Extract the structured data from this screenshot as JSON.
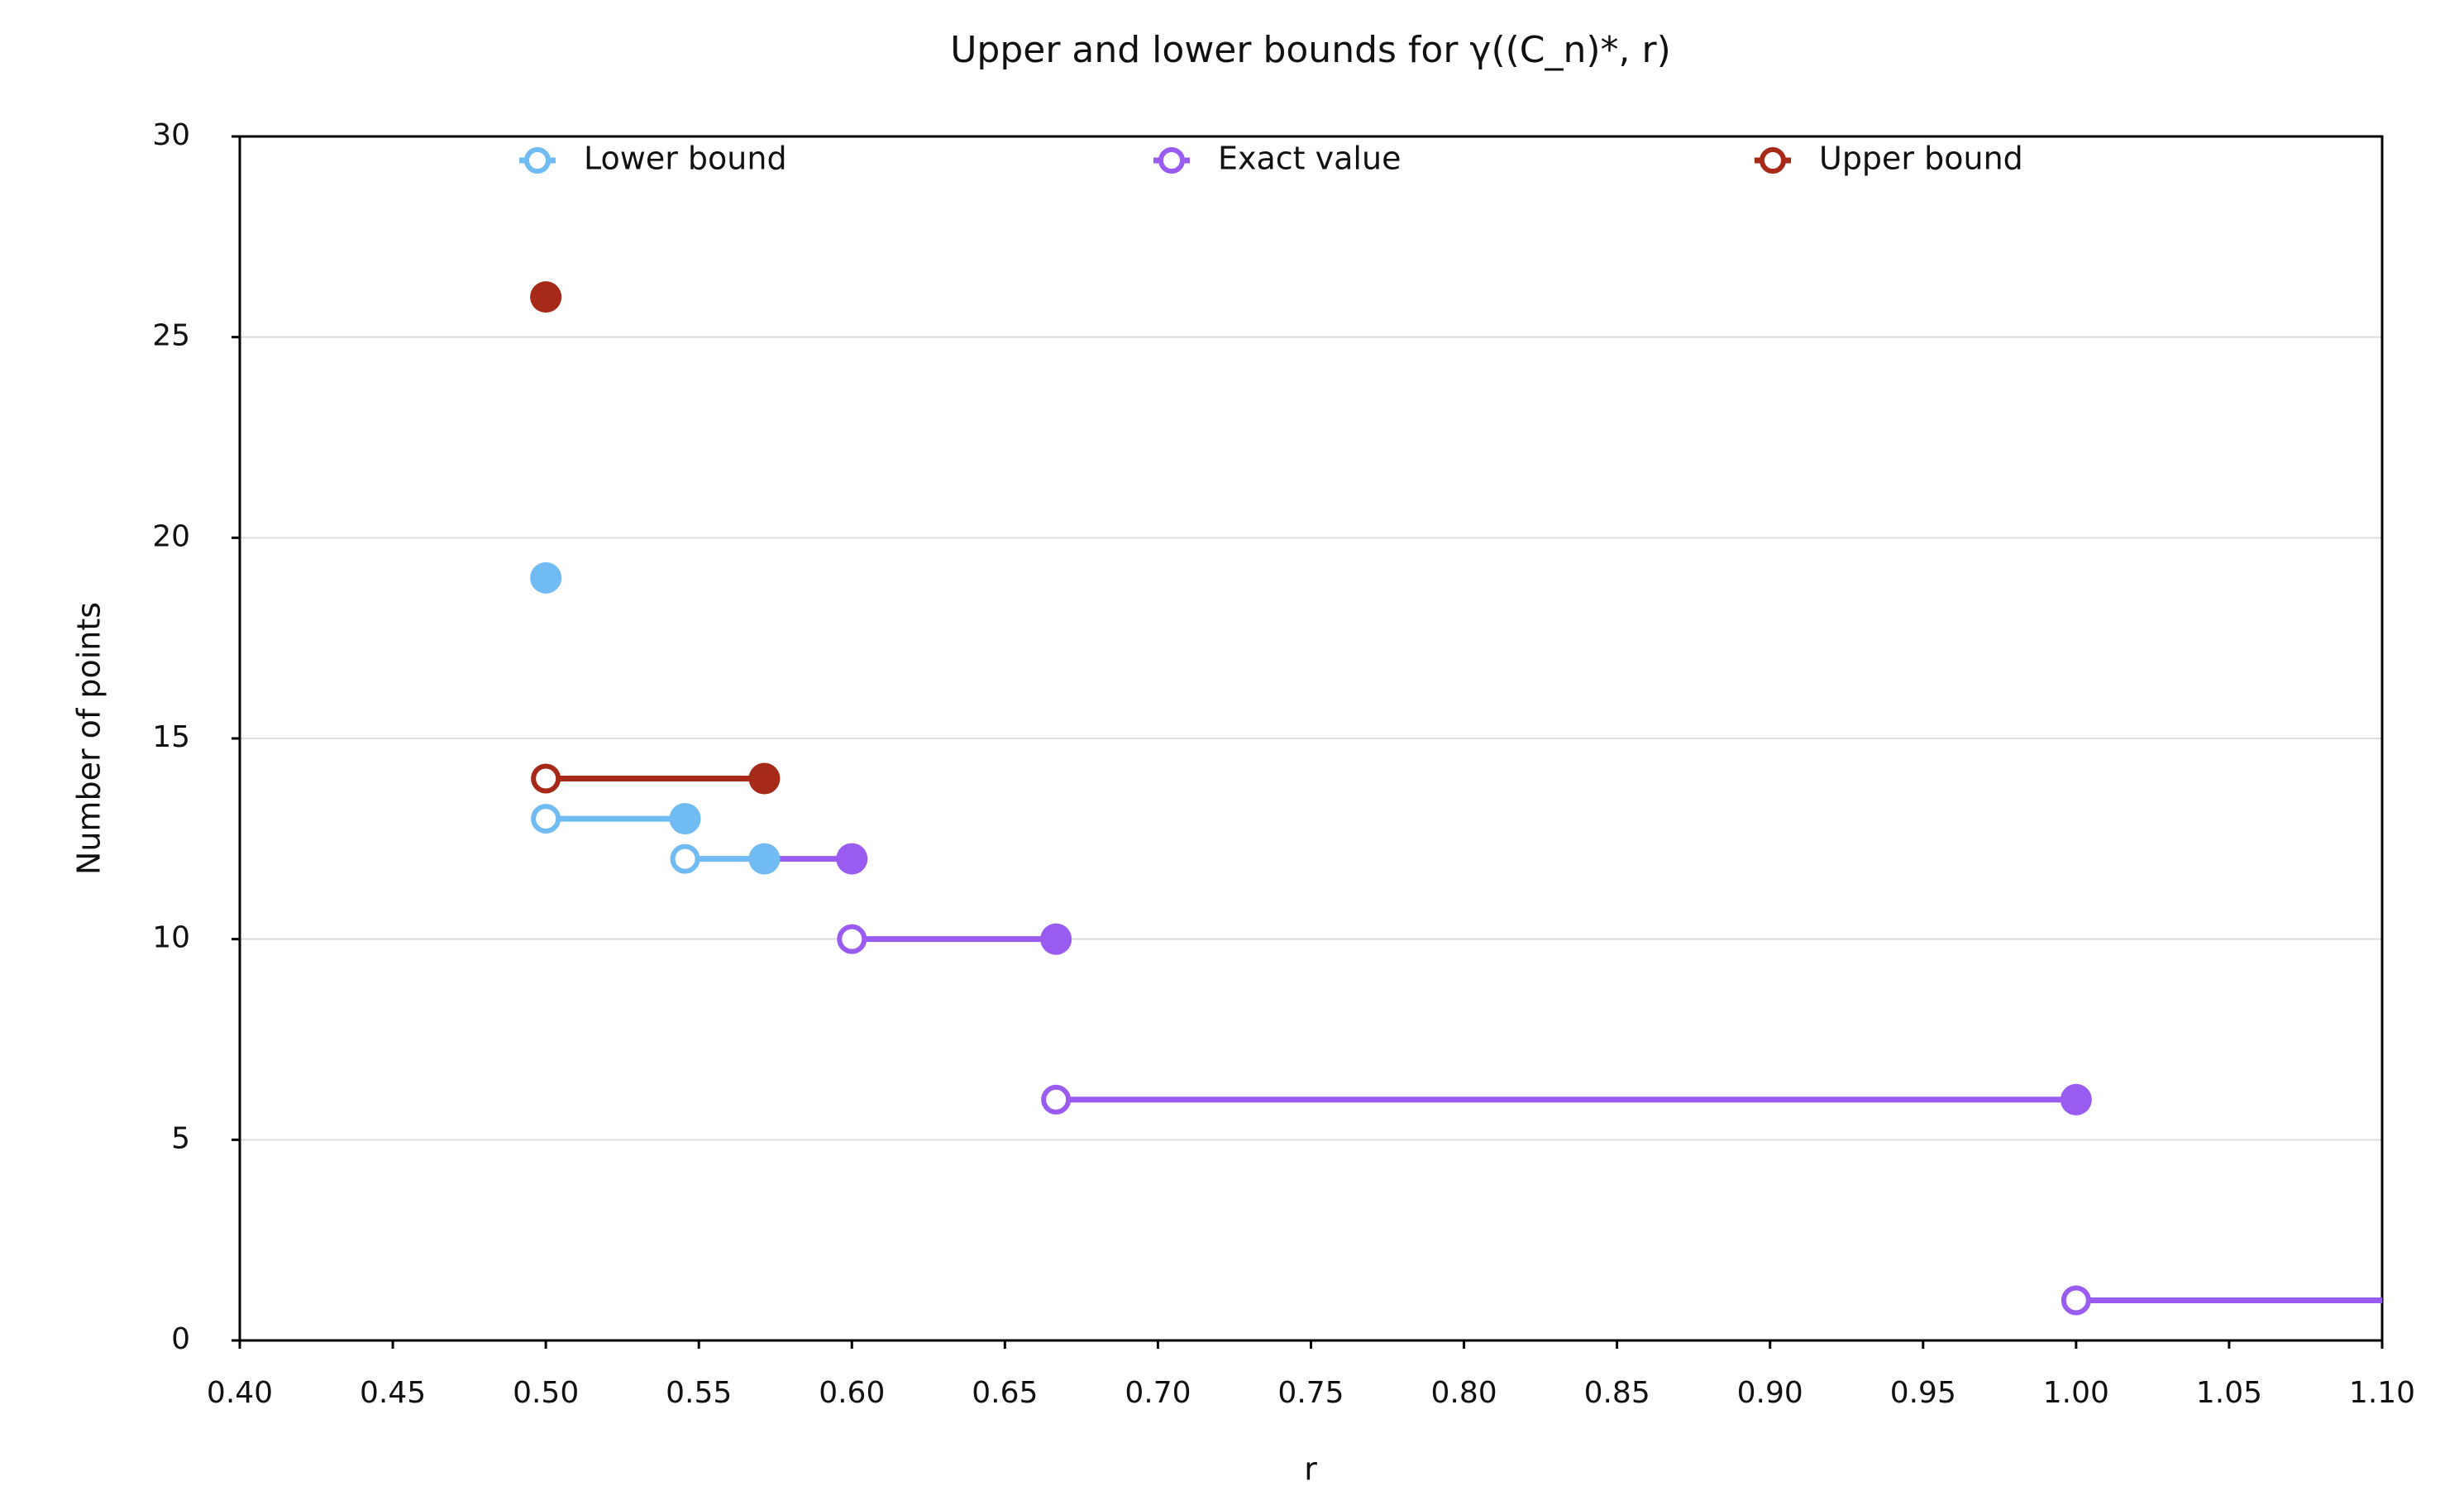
{
  "chart_data": {
    "type": "step-segments",
    "title": "Upper and lower bounds for γ((C_n)*, r)",
    "x_label": "r",
    "y_label": "Number of points",
    "xlim": [
      0.4,
      1.1
    ],
    "xticks": [
      {
        "value": 0.4,
        "label": "0.40"
      },
      {
        "value": 0.45,
        "label": "0.45"
      },
      {
        "value": 0.5,
        "label": "0.50"
      },
      {
        "value": 0.55,
        "label": "0.55"
      },
      {
        "value": 0.6,
        "label": "0.60"
      },
      {
        "value": 0.65,
        "label": "0.65"
      },
      {
        "value": 0.7,
        "label": "0.70"
      },
      {
        "value": 0.75,
        "label": "0.75"
      },
      {
        "value": 0.8,
        "label": "0.80"
      },
      {
        "value": 0.85,
        "label": "0.85"
      },
      {
        "value": 0.9,
        "label": "0.90"
      },
      {
        "value": 0.95,
        "label": "0.95"
      },
      {
        "value": 1.0,
        "label": "1.00"
      },
      {
        "value": 1.05,
        "label": "1.05"
      },
      {
        "value": 1.1,
        "label": "1.10"
      }
    ],
    "ylim": [
      0,
      30
    ],
    "yticks": [
      0,
      5,
      10,
      15,
      20,
      25,
      30
    ],
    "grid": true,
    "series": [
      {
        "name": "Lower bound",
        "color": "#6fbbf2",
        "segments": [
          {
            "x": [
              0.5
            ],
            "y": 19,
            "markers": [
              "filled"
            ]
          },
          {
            "x": [
              0.5,
              0.5455
            ],
            "y": 13,
            "markers": [
              "open",
              "filled"
            ]
          },
          {
            "x": [
              0.5455,
              0.5714
            ],
            "y": 12,
            "markers": [
              "open",
              "filled"
            ]
          }
        ]
      },
      {
        "name": "Exact value",
        "color": "#9a5cf0",
        "segments": [
          {
            "x": [
              0.5714,
              0.6
            ],
            "y": 12,
            "markers": [
              null,
              "filled"
            ]
          },
          {
            "x": [
              0.6,
              0.6667
            ],
            "y": 10,
            "markers": [
              "open",
              "filled"
            ]
          },
          {
            "x": [
              0.6667,
              1.0
            ],
            "y": 6,
            "markers": [
              "open",
              "filled"
            ]
          },
          {
            "x": [
              1.0,
              1.1
            ],
            "y": 1,
            "markers": [
              "open",
              null
            ]
          }
        ]
      },
      {
        "name": "Upper bound",
        "color": "#a62a17",
        "segments": [
          {
            "x": [
              0.5
            ],
            "y": 26,
            "markers": [
              "filled"
            ]
          },
          {
            "x": [
              0.5,
              0.5714
            ],
            "y": 14,
            "markers": [
              "open",
              "filled"
            ]
          }
        ]
      }
    ]
  }
}
